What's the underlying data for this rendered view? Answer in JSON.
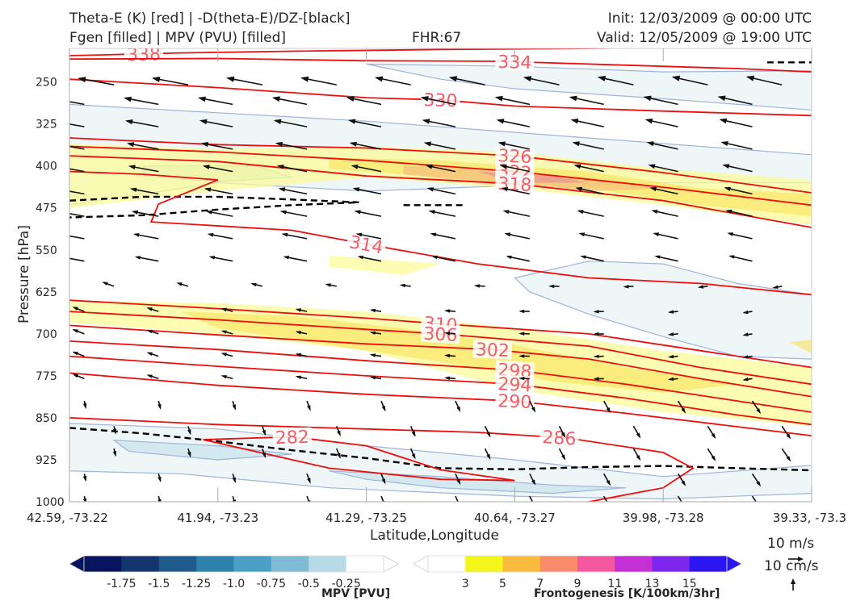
{
  "header": {
    "title_line1_left": "Theta-E (K) [red] | -D(theta-E)/DZ-[black]",
    "title_line2_left": "Fgen [filled] | MPV (PVU) [filled]",
    "fhr": "FHR:67",
    "init": "Init: 12/03/2009 @ 00:00 UTC",
    "valid": "Valid: 12/05/2009 @ 19:00 UTC"
  },
  "chart_data": {
    "type": "cross-section",
    "xlabel": "Latitude,Longitude",
    "ylabel": "Pressure [hPa]",
    "x_ticks": [
      "42.59, -73.22",
      "41.94, -73.23",
      "41.29, -73.25",
      "40.64, -73.27",
      "39.98, -73.28",
      "39.33, -73.3"
    ],
    "y_ticks": [
      250,
      325,
      400,
      475,
      550,
      625,
      700,
      775,
      850,
      925,
      1000
    ],
    "ylim": [
      1000,
      190
    ],
    "theta_e_contours": [
      {
        "label": "338",
        "points": [
          [
            0.0,
            203
          ],
          [
            0.15,
            198
          ],
          [
            0.3,
            195
          ],
          [
            0.5,
            192
          ],
          [
            0.7,
            190
          ],
          [
            0.9,
            187
          ],
          [
            1.0,
            186
          ]
        ],
        "label_at": 0.1
      },
      {
        "label": "334",
        "points": [
          [
            0.0,
            209
          ],
          [
            0.2,
            208
          ],
          [
            0.4,
            212
          ],
          [
            0.58,
            213
          ],
          [
            0.75,
            220
          ],
          [
            0.9,
            226
          ],
          [
            1.0,
            232
          ]
        ],
        "label_at": 0.6
      },
      {
        "label": "330",
        "points": [
          [
            0.0,
            245
          ],
          [
            0.2,
            260
          ],
          [
            0.4,
            278
          ],
          [
            0.5,
            282
          ],
          [
            0.6,
            293
          ],
          [
            0.8,
            302
          ],
          [
            1.0,
            310
          ]
        ],
        "label_at": 0.5
      },
      {
        "label": "326",
        "points": [
          [
            0.0,
            350
          ],
          [
            0.2,
            362
          ],
          [
            0.4,
            368
          ],
          [
            0.6,
            382
          ],
          [
            0.8,
            412
          ],
          [
            1.0,
            448
          ]
        ],
        "label_at": 0.6
      },
      {
        "label": "322",
        "points": [
          [
            0.0,
            365
          ],
          [
            0.2,
            375
          ],
          [
            0.4,
            390
          ],
          [
            0.6,
            410
          ],
          [
            0.8,
            438
          ],
          [
            1.0,
            470
          ]
        ],
        "label_at": 0.6
      },
      {
        "label": "318",
        "points": [
          [
            0.0,
            382
          ],
          [
            0.2,
            392
          ],
          [
            0.4,
            418
          ],
          [
            0.6,
            432
          ],
          [
            0.8,
            462
          ],
          [
            1.0,
            510
          ]
        ],
        "label_at": 0.6
      },
      {
        "label": "314",
        "points": [
          [
            0.0,
            410
          ],
          [
            0.1,
            415
          ],
          [
            0.2,
            425
          ],
          [
            0.12,
            468
          ],
          [
            0.11,
            500
          ],
          [
            0.3,
            515
          ],
          [
            0.4,
            540
          ],
          [
            0.55,
            575
          ],
          [
            0.7,
            600
          ],
          [
            0.85,
            610
          ],
          [
            1.0,
            630
          ]
        ],
        "label_at": 0.4
      },
      {
        "label": "310",
        "points": [
          [
            0.0,
            640
          ],
          [
            0.2,
            655
          ],
          [
            0.4,
            672
          ],
          [
            0.5,
            682
          ],
          [
            0.7,
            700
          ],
          [
            0.85,
            730
          ],
          [
            1.0,
            760
          ]
        ],
        "label_at": 0.5
      },
      {
        "label": "306",
        "points": [
          [
            0.0,
            660
          ],
          [
            0.2,
            675
          ],
          [
            0.4,
            692
          ],
          [
            0.5,
            700
          ],
          [
            0.7,
            722
          ],
          [
            0.85,
            760
          ],
          [
            1.0,
            790
          ]
        ],
        "label_at": 0.5
      },
      {
        "label": "302",
        "points": [
          [
            0.0,
            685
          ],
          [
            0.2,
            702
          ],
          [
            0.4,
            718
          ],
          [
            0.57,
            728
          ],
          [
            0.7,
            745
          ],
          [
            0.85,
            780
          ],
          [
            1.0,
            812
          ]
        ],
        "label_at": 0.57
      },
      {
        "label": "298",
        "points": [
          [
            0.0,
            713
          ],
          [
            0.2,
            728
          ],
          [
            0.4,
            748
          ],
          [
            0.6,
            765
          ],
          [
            0.75,
            790
          ],
          [
            0.9,
            820
          ],
          [
            1.0,
            840
          ]
        ],
        "label_at": 0.6
      },
      {
        "label": "294",
        "points": [
          [
            0.0,
            740
          ],
          [
            0.2,
            758
          ],
          [
            0.4,
            775
          ],
          [
            0.6,
            790
          ],
          [
            0.75,
            815
          ],
          [
            0.9,
            845
          ],
          [
            1.0,
            862
          ]
        ],
        "label_at": 0.6
      },
      {
        "label": "290",
        "points": [
          [
            0.0,
            770
          ],
          [
            0.2,
            792
          ],
          [
            0.4,
            808
          ],
          [
            0.6,
            820
          ],
          [
            0.75,
            842
          ],
          [
            0.9,
            866
          ],
          [
            1.0,
            882
          ]
        ],
        "label_at": 0.6
      },
      {
        "label": "286",
        "points": [
          [
            0.0,
            850
          ],
          [
            0.2,
            862
          ],
          [
            0.4,
            870
          ],
          [
            0.55,
            876
          ],
          [
            0.67,
            886
          ],
          [
            0.8,
            912
          ],
          [
            0.84,
            940
          ],
          [
            0.8,
            975
          ],
          [
            0.7,
            1000
          ]
        ],
        "label_at": 0.66
      },
      {
        "label": "282",
        "points": [
          [
            0.18,
            889
          ],
          [
            0.3,
            884
          ],
          [
            0.4,
            900
          ],
          [
            0.5,
            943
          ],
          [
            0.6,
            962
          ],
          [
            0.5,
            960
          ],
          [
            0.35,
            940
          ],
          [
            0.18,
            889
          ]
        ],
        "label_at": 0.3
      }
    ],
    "stability_contours": [
      {
        "points": [
          [
            0.0,
            462
          ],
          [
            0.1,
            455
          ],
          [
            0.2,
            455
          ],
          [
            0.3,
            460
          ],
          [
            0.39,
            465
          ],
          [
            0.3,
            470
          ],
          [
            0.2,
            478
          ],
          [
            0.1,
            488
          ],
          [
            0.0,
            492
          ]
        ]
      },
      {
        "points": [
          [
            0.45,
            470
          ],
          [
            0.53,
            470
          ]
        ]
      },
      {
        "points": [
          [
            0.0,
            868
          ],
          [
            0.1,
            878
          ],
          [
            0.2,
            892
          ],
          [
            0.3,
            908
          ],
          [
            0.4,
            922
          ],
          [
            0.5,
            940
          ],
          [
            0.6,
            942
          ],
          [
            0.7,
            938
          ],
          [
            0.8,
            936
          ],
          [
            0.9,
            940
          ],
          [
            1.0,
            944
          ]
        ]
      },
      {
        "points": [
          [
            0.94,
            215
          ],
          [
            1.0,
            215
          ]
        ]
      }
    ],
    "fgen_regions": [
      {
        "level": 3,
        "points": [
          [
            0.0,
            360
          ],
          [
            0.2,
            370
          ],
          [
            0.4,
            365
          ],
          [
            0.6,
            375
          ],
          [
            0.8,
            405
          ],
          [
            1.0,
            425
          ],
          [
            1.0,
            505
          ],
          [
            0.8,
            470
          ],
          [
            0.6,
            440
          ],
          [
            0.4,
            420
          ],
          [
            0.2,
            445
          ],
          [
            0.0,
            475
          ]
        ]
      },
      {
        "level": 5,
        "points": [
          [
            0.35,
            385
          ],
          [
            0.5,
            390
          ],
          [
            0.7,
            410
          ],
          [
            0.85,
            440
          ],
          [
            1.0,
            450
          ],
          [
            1.0,
            490
          ],
          [
            0.85,
            470
          ],
          [
            0.7,
            440
          ],
          [
            0.5,
            420
          ],
          [
            0.35,
            405
          ]
        ]
      },
      {
        "level": 7,
        "points": [
          [
            0.45,
            400
          ],
          [
            0.6,
            408
          ],
          [
            0.72,
            425
          ],
          [
            0.8,
            440
          ],
          [
            0.7,
            445
          ],
          [
            0.55,
            430
          ],
          [
            0.45,
            415
          ]
        ]
      },
      {
        "level": 9,
        "points": [
          [
            0.55,
            410
          ],
          [
            0.65,
            418
          ],
          [
            0.7,
            430
          ],
          [
            0.6,
            430
          ]
        ]
      },
      {
        "level": 3,
        "points": [
          [
            0.35,
            560
          ],
          [
            0.5,
            575
          ],
          [
            0.45,
            595
          ],
          [
            0.35,
            580
          ]
        ]
      },
      {
        "level": 3,
        "points": [
          [
            0.0,
            640
          ],
          [
            0.2,
            645
          ],
          [
            0.4,
            660
          ],
          [
            0.6,
            690
          ],
          [
            0.8,
            730
          ],
          [
            1.0,
            760
          ],
          [
            1.0,
            865
          ],
          [
            0.8,
            840
          ],
          [
            0.6,
            800
          ],
          [
            0.4,
            730
          ],
          [
            0.2,
            700
          ],
          [
            0.0,
            680
          ]
        ]
      },
      {
        "level": 5,
        "points": [
          [
            0.15,
            660
          ],
          [
            0.3,
            668
          ],
          [
            0.45,
            690
          ],
          [
            0.6,
            720
          ],
          [
            0.75,
            760
          ],
          [
            0.9,
            790
          ],
          [
            0.8,
            805
          ],
          [
            0.65,
            785
          ],
          [
            0.5,
            750
          ],
          [
            0.35,
            720
          ],
          [
            0.2,
            690
          ]
        ]
      },
      {
        "level": 5,
        "points": [
          [
            0.97,
            715
          ],
          [
            1.0,
            710
          ],
          [
            1.0,
            735
          ]
        ]
      }
    ],
    "mpv_regions": [
      {
        "level": -0.25,
        "points": [
          [
            0.0,
            290
          ],
          [
            0.2,
            305
          ],
          [
            0.4,
            320
          ],
          [
            0.6,
            340
          ],
          [
            0.8,
            360
          ],
          [
            1.0,
            380
          ],
          [
            1.0,
            430
          ],
          [
            0.8,
            430
          ],
          [
            0.6,
            435
          ],
          [
            0.4,
            445
          ],
          [
            0.2,
            430
          ],
          [
            0.0,
            470
          ]
        ]
      },
      {
        "level": -0.25,
        "points": [
          [
            0.4,
            218
          ],
          [
            0.6,
            222
          ],
          [
            0.8,
            232
          ],
          [
            1.0,
            230
          ],
          [
            1.0,
            300
          ],
          [
            0.8,
            280
          ],
          [
            0.6,
            262
          ],
          [
            0.5,
            245
          ]
        ]
      },
      {
        "level": -0.25,
        "points": [
          [
            0.6,
            600
          ],
          [
            0.7,
            570
          ],
          [
            0.8,
            575
          ],
          [
            0.9,
            610
          ],
          [
            1.0,
            630
          ],
          [
            1.0,
            745
          ],
          [
            0.9,
            740
          ],
          [
            0.8,
            705
          ],
          [
            0.7,
            665
          ],
          [
            0.62,
            625
          ]
        ]
      },
      {
        "level": -0.25,
        "points": [
          [
            0.0,
            860
          ],
          [
            0.2,
            870
          ],
          [
            0.4,
            900
          ],
          [
            0.6,
            925
          ],
          [
            0.8,
            955
          ],
          [
            1.0,
            935
          ],
          [
            1.0,
            985
          ],
          [
            0.8,
            995
          ],
          [
            0.6,
            990
          ],
          [
            0.35,
            975
          ],
          [
            0.15,
            950
          ],
          [
            0.0,
            945
          ]
        ]
      },
      {
        "level": -0.5,
        "points": [
          [
            0.06,
            890
          ],
          [
            0.2,
            900
          ],
          [
            0.3,
            915
          ],
          [
            0.2,
            925
          ],
          [
            0.08,
            910
          ]
        ]
      },
      {
        "level": -0.5,
        "points": [
          [
            0.35,
            945
          ],
          [
            0.5,
            955
          ],
          [
            0.65,
            970
          ],
          [
            0.75,
            975
          ],
          [
            0.65,
            985
          ],
          [
            0.5,
            975
          ],
          [
            0.4,
            960
          ]
        ]
      },
      {
        "level": -0.5,
        "points": [
          [
            0.1,
            400
          ],
          [
            0.25,
            400
          ],
          [
            0.3,
            420
          ],
          [
            0.2,
            428
          ],
          [
            0.1,
            418
          ]
        ]
      },
      {
        "level": -0.5,
        "points": [
          [
            0.55,
            415
          ],
          [
            0.7,
            420
          ],
          [
            0.75,
            430
          ],
          [
            0.65,
            440
          ],
          [
            0.55,
            432
          ]
        ]
      }
    ],
    "wind_reference": {
      "horizontal": "10 m/s",
      "vertical": "10 cm/s"
    },
    "colorbars": [
      {
        "label": "MPV [PVU]",
        "ticks": [
          "-1.75",
          "-1.5",
          "-1.25",
          "-1.0",
          "-0.75",
          "-0.5",
          "-0.25"
        ],
        "colors": [
          "#08155e",
          "#12366d",
          "#1f5b8c",
          "#2c82ab",
          "#4aa0c4",
          "#7fbbd4",
          "#b6dbe6",
          "#ffffff"
        ]
      },
      {
        "label": "Frontogenesis [K/100km/3hr]",
        "ticks": [
          "3",
          "5",
          "7",
          "9",
          "11",
          "13",
          "15"
        ],
        "colors": [
          "#ffffff",
          "#f4f518",
          "#f8bb3e",
          "#f98b6a",
          "#f5579f",
          "#c52fd6",
          "#7d27ee",
          "#2c17f2"
        ]
      }
    ]
  }
}
